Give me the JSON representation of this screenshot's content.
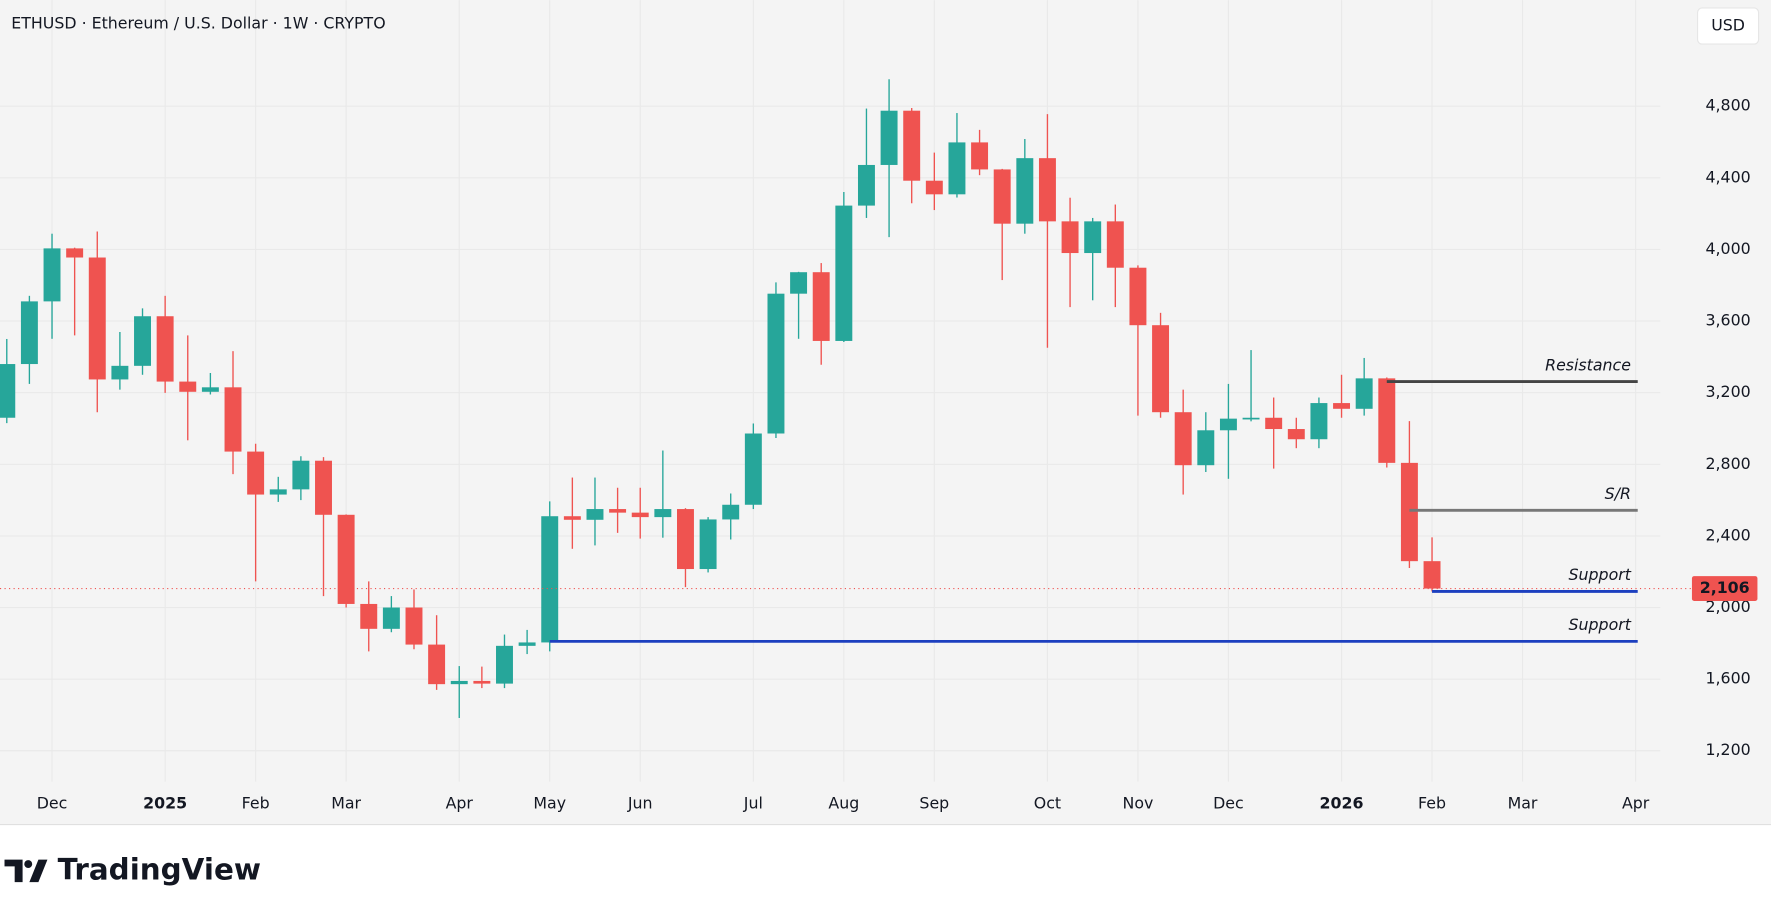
{
  "chart_data": {
    "type": "candlestick",
    "title": "ETHUSD · Ethereum / U.S. Dollar · 1W · CRYPTO",
    "currency": "USD",
    "categories": [
      null,
      null,
      "Dec",
      null,
      null,
      null,
      null,
      "2025",
      null,
      null,
      null,
      "Feb",
      null,
      null,
      null,
      "Mar",
      null,
      null,
      null,
      null,
      "Apr",
      null,
      null,
      null,
      "May",
      null,
      null,
      null,
      "Jun",
      null,
      null,
      null,
      null,
      "Jul",
      null,
      null,
      null,
      "Aug",
      null,
      null,
      null,
      "Sep",
      null,
      null,
      null,
      null,
      "Oct",
      null,
      null,
      null,
      "Nov",
      null,
      null,
      null,
      "Dec",
      null,
      null,
      null,
      null,
      "2026",
      null,
      null,
      null,
      "Feb",
      null,
      null,
      null,
      "Mar",
      null,
      null,
      null,
      null,
      "Apr"
    ],
    "open": [
      3060,
      3360,
      3710,
      4006,
      3955,
      3274,
      3350,
      3627,
      3262,
      3205,
      3230,
      2871,
      2631,
      2660,
      2820,
      2518,
      2020,
      1881,
      2000,
      1793,
      1572,
      1590,
      1575,
      1786,
      1805,
      2510,
      2490,
      2550,
      2530,
      2505,
      2550,
      2215,
      2492,
      2574,
      2972,
      3753,
      3873,
      3489,
      4245,
      4472,
      4775,
      4384,
      4308,
      4598,
      4447,
      4144,
      4510,
      4157,
      3980,
      4157,
      3898,
      3577,
      3091,
      2795,
      2990,
      3055,
      3060,
      2997,
      2940,
      3142,
      3110,
      3280,
      2808,
      2259,
      null,
      null,
      null,
      null,
      null,
      null,
      null,
      null,
      null
    ],
    "high": [
      3500,
      3741,
      4088,
      4010,
      4100,
      3539,
      3671,
      3741,
      3520,
      3310,
      3432,
      2915,
      2730,
      2845,
      2840,
      2520,
      2146,
      2064,
      2101,
      1957,
      1673,
      1670,
      1849,
      1875,
      2593,
      2726,
      2726,
      2669,
      2669,
      2877,
      2555,
      2505,
      2637,
      3028,
      3816,
      3875,
      3924,
      4321,
      4787,
      4951,
      4790,
      4541,
      4762,
      4668,
      4450,
      4617,
      4756,
      4289,
      4176,
      4251,
      3911,
      3646,
      3217,
      3091,
      3249,
      3438,
      3173,
      3060,
      3173,
      3300,
      3394,
      3285,
      3041,
      2392,
      null,
      null,
      null,
      null,
      null,
      null,
      null,
      null,
      null
    ],
    "low": [
      3030,
      3249,
      3501,
      3520,
      3091,
      3217,
      3300,
      3199,
      2934,
      3190,
      2745,
      2146,
      2590,
      2600,
      2064,
      2000,
      1755,
      1862,
      1767,
      1540,
      1383,
      1550,
      1550,
      1740,
      1755,
      2328,
      2347,
      2417,
      2385,
      2390,
      2114,
      2196,
      2380,
      2550,
      2947,
      3501,
      3356,
      3483,
      4176,
      4069,
      4258,
      4220,
      4290,
      4415,
      3829,
      4088,
      3451,
      3678,
      3716,
      3678,
      3072,
      3060,
      2631,
      2757,
      2719,
      3040,
      2776,
      2890,
      2890,
      3060,
      3072,
      2782,
      2221,
      2090,
      null,
      null,
      null,
      null,
      null,
      null,
      null,
      null,
      null
    ],
    "close": [
      3360,
      3710,
      4006,
      3955,
      3274,
      3350,
      3627,
      3262,
      3205,
      3230,
      2871,
      2631,
      2660,
      2820,
      2518,
      2020,
      1881,
      2000,
      1793,
      1572,
      1590,
      1575,
      1786,
      1805,
      2510,
      2490,
      2550,
      2530,
      2505,
      2550,
      2215,
      2492,
      2574,
      2972,
      3753,
      3873,
      3489,
      4245,
      4472,
      4775,
      4384,
      4308,
      4598,
      4447,
      4144,
      4510,
      4157,
      3980,
      4157,
      3898,
      3577,
      3091,
      2795,
      2990,
      3055,
      3060,
      2997,
      2940,
      3142,
      3110,
      3280,
      2808,
      2259,
      2106,
      null,
      null,
      null,
      null,
      null,
      null,
      null,
      null,
      null
    ],
    "up_color": "#26a69a",
    "down_color": "#ef5350",
    "ylim": [
      1040,
      5393
    ],
    "yticks": [
      {
        "value": 1200,
        "label": "1,200"
      },
      {
        "value": 1600,
        "label": "1,600"
      },
      {
        "value": 2000,
        "label": "2,000"
      },
      {
        "value": 2400,
        "label": "2,400"
      },
      {
        "value": 2800,
        "label": "2,800"
      },
      {
        "value": 3200,
        "label": "3,200"
      },
      {
        "value": 3600,
        "label": "3,600"
      },
      {
        "value": 4000,
        "label": "4,000"
      },
      {
        "value": 4400,
        "label": "4,400"
      },
      {
        "value": 4800,
        "label": "4,800"
      }
    ],
    "grid": true,
    "lines": [
      {
        "label": "Resistance",
        "value": 3262,
        "from": 61,
        "color": "#444444",
        "label_color": "#555555"
      },
      {
        "label": "S/R",
        "value": 2543,
        "from": 62,
        "color": "#777777",
        "label_color": "#777777"
      },
      {
        "label": "Support",
        "value": 2090,
        "from": 63,
        "color": "#1c3fbf",
        "label_color": "#1c3fbf"
      },
      {
        "label": "Support",
        "value": 1811,
        "from": 24,
        "color": "#1c3fbf",
        "label_color": "#1c3fbf"
      }
    ],
    "last_price": {
      "value": 2106,
      "label": "2,106"
    }
  },
  "brand": "TradingView"
}
